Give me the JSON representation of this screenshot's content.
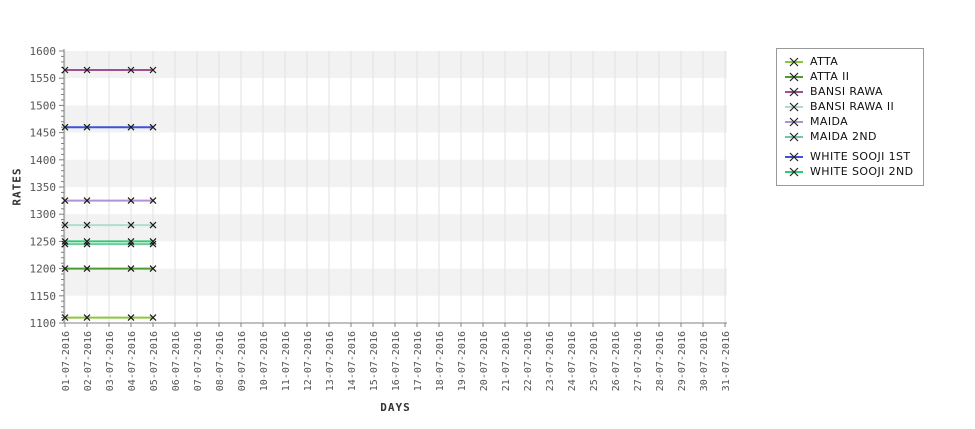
{
  "chart_data": {
    "type": "line",
    "title": "",
    "xlabel": "DAYS",
    "ylabel": "RATES",
    "ylim": [
      1100,
      1600
    ],
    "y_tick_step": 50,
    "y_minor_step": 10,
    "y_ticks": [
      1100,
      1150,
      1200,
      1250,
      1300,
      1350,
      1400,
      1450,
      1500,
      1550,
      1600
    ],
    "x_categories": [
      "01-07-2016",
      "02-07-2016",
      "03-07-2016",
      "04-07-2016",
      "05-07-2016",
      "06-07-2016",
      "07-07-2016",
      "08-07-2016",
      "09-07-2016",
      "10-07-2016",
      "11-07-2016",
      "12-07-2016",
      "13-07-2016",
      "14-07-2016",
      "15-07-2016",
      "16-07-2016",
      "17-07-2016",
      "18-07-2016",
      "19-07-2016",
      "20-07-2016",
      "21-07-2016",
      "22-07-2016",
      "23-07-2016",
      "24-07-2016",
      "25-07-2016",
      "26-07-2016",
      "27-07-2016",
      "28-07-2016",
      "29-07-2016",
      "30-07-2016",
      "31-07-2016"
    ],
    "data_x": [
      "01-07-2016",
      "02-07-2016",
      "04-07-2016",
      "05-07-2016"
    ],
    "series": [
      {
        "name": "ATTA",
        "color": "#8cc63c",
        "values": [
          1110,
          1110,
          1110,
          1110
        ]
      },
      {
        "name": "ATTA II",
        "color": "#4f9a31",
        "values": [
          1200,
          1200,
          1200,
          1200
        ]
      },
      {
        "name": "BANSI RAWA",
        "color": "#a0508e",
        "values": [
          1565,
          1565,
          1565,
          1565
        ]
      },
      {
        "name": "BANSI RAWA II",
        "color": "#b2ddcc",
        "values": [
          1280,
          1280,
          1280,
          1280
        ]
      },
      {
        "name": "MAIDA",
        "color": "#b092d4",
        "values": [
          1325,
          1325,
          1325,
          1325
        ]
      },
      {
        "name": "MAIDA 2ND",
        "color": "#72c8a6",
        "values": [
          1245,
          1245,
          1245,
          1245
        ]
      },
      {
        "name": "WHITE SOOJI 1ST",
        "color": "#3d52d5",
        "values": [
          1460,
          1460,
          1460,
          1460
        ]
      },
      {
        "name": "WHITE SOOJI 2ND",
        "color": "#2fcc74",
        "values": [
          1250,
          1250,
          1250,
          1250
        ]
      }
    ],
    "marker": "x",
    "marker_color": "#1a1a1a",
    "grid": true,
    "grid_color": "#e2e2e2",
    "axis_color": "#808080",
    "band_colors": [
      "#f2f2f2",
      "#ffffff"
    ],
    "legend_position": "right"
  }
}
